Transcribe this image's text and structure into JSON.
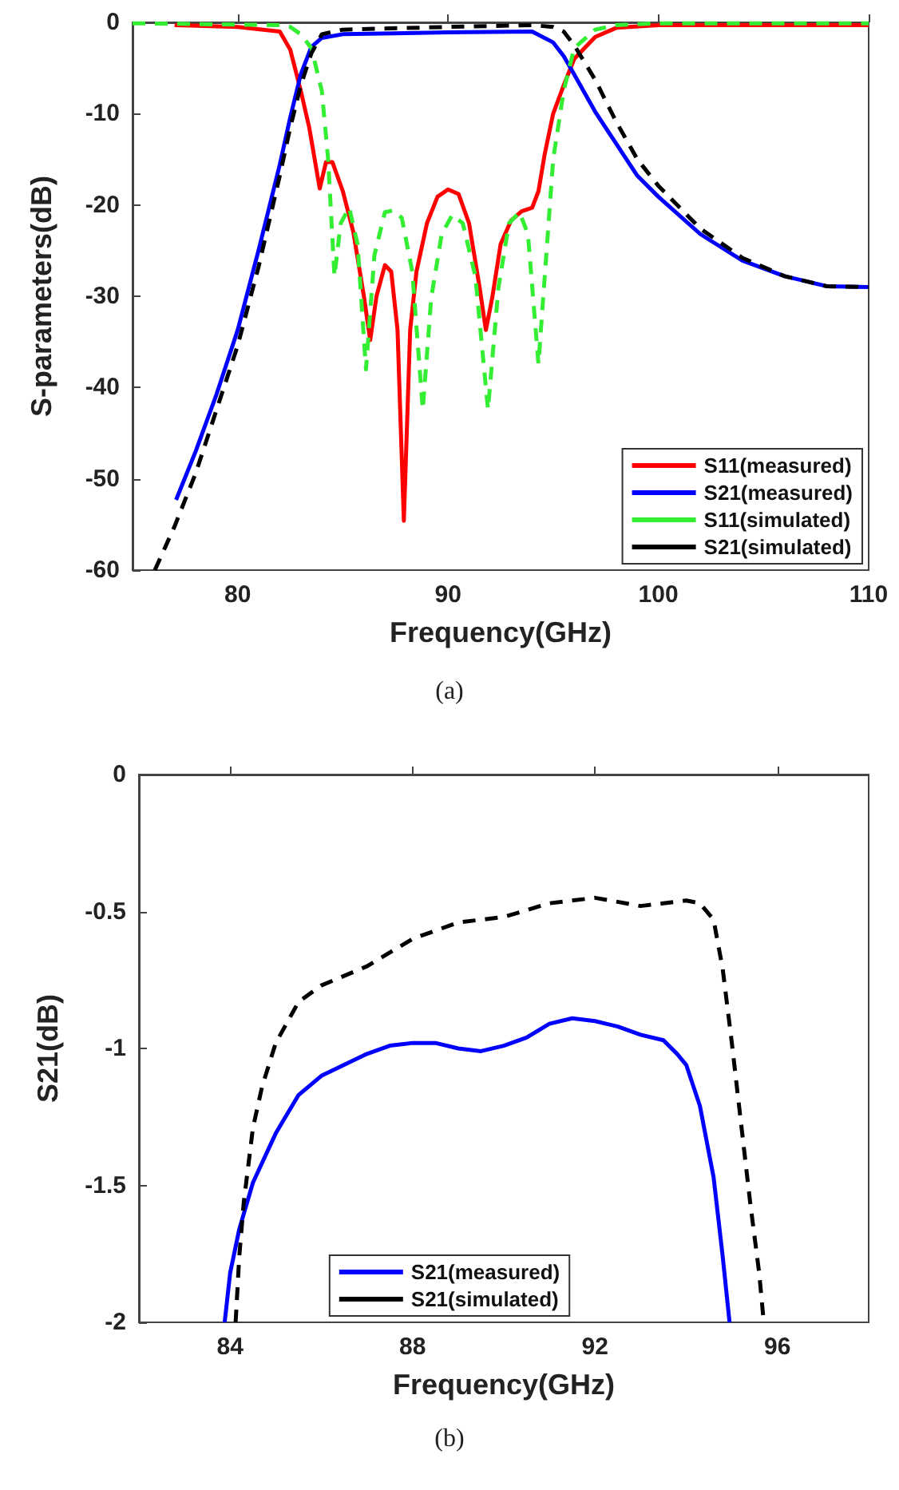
{
  "chart_data": [
    {
      "type": "line",
      "xlabel": "Frequency(GHz)",
      "ylabel": "S-parameters(dB)",
      "annotations": [
        "(a)"
      ],
      "xlim": [
        75,
        110
      ],
      "ylim": [
        -60,
        0
      ],
      "xticks": [
        80,
        90,
        100,
        110
      ],
      "yticks": [
        -60,
        -50,
        -40,
        -30,
        -20,
        -10,
        0
      ],
      "grid": false,
      "legend": "bottom right",
      "marker": "none",
      "series": [
        {
          "name": "S11(measured)",
          "color": "#ff0000",
          "line_style": "solid",
          "x": [
            77,
            80,
            82,
            82.5,
            83,
            83.4,
            83.9,
            84.2,
            84.5,
            85,
            85.5,
            86,
            86.3,
            86.6,
            87,
            87.3,
            87.6,
            87.9,
            88.2,
            88.5,
            89,
            89.5,
            90,
            90.5,
            91,
            91.5,
            91.8,
            92.1,
            92.5,
            93,
            93.5,
            94,
            94.3,
            94.6,
            95,
            95.5,
            96,
            97,
            98,
            100,
            105,
            110
          ],
          "values": [
            -0.3,
            -0.5,
            -1,
            -3,
            -7.5,
            -11.5,
            -18.2,
            -15.3,
            -15.3,
            -18.5,
            -23,
            -30,
            -34.8,
            -30,
            -26.6,
            -27.3,
            -33.7,
            -54.6,
            -33.7,
            -27.3,
            -22,
            -19.1,
            -18.3,
            -18.8,
            -22,
            -29,
            -33.7,
            -30.2,
            -24.3,
            -21.7,
            -20.7,
            -20.3,
            -18.5,
            -14.4,
            -10,
            -6.9,
            -4,
            -1.6,
            -0.6,
            -0.3,
            -0.3,
            -0.3
          ]
        },
        {
          "name": "S21(measured)",
          "color": "#0000ff",
          "line_style": "solid",
          "x": [
            77.07,
            78,
            79,
            80,
            81,
            82,
            82.5,
            83,
            83.5,
            84,
            85,
            90,
            94,
            95,
            95.5,
            96,
            97,
            98,
            99,
            100,
            102,
            104,
            106,
            108,
            110
          ],
          "values": [
            -52.3,
            -47,
            -40.7,
            -33.7,
            -24.9,
            -15.6,
            -10.4,
            -5.7,
            -2.7,
            -1.7,
            -1.3,
            -1.1,
            -1,
            -2.2,
            -3.7,
            -5.7,
            -9.8,
            -13.3,
            -16.8,
            -19.1,
            -23.2,
            -26.1,
            -27.8,
            -28.9,
            -29
          ]
        },
        {
          "name": "S11(simulated)",
          "color": "#33ee33",
          "line_style": "dashed",
          "x": [
            75,
            82,
            82.5,
            83,
            83.5,
            84,
            84.3,
            84.6,
            84.9,
            85.3,
            85.7,
            86.1,
            86.5,
            87,
            87.4,
            87.8,
            88.3,
            88.8,
            89.2,
            89.7,
            90.2,
            90.7,
            91.3,
            91.9,
            92.4,
            92.9,
            93.4,
            93.8,
            94.3,
            94.6,
            95,
            95.5,
            96,
            97,
            98,
            100,
            110
          ],
          "values": [
            -0.1,
            -0.3,
            -0.5,
            -1.3,
            -2.8,
            -7.5,
            -15,
            -27.8,
            -22,
            -20.3,
            -24.3,
            -38,
            -25.5,
            -20.8,
            -20.6,
            -21.4,
            -27.3,
            -42.4,
            -30.2,
            -23.2,
            -21.1,
            -22,
            -27.8,
            -42.4,
            -29,
            -22,
            -20.8,
            -23.2,
            -37.4,
            -27.8,
            -15,
            -7.5,
            -2.8,
            -0.8,
            -0.3,
            -0.1,
            -0.1
          ]
        },
        {
          "name": "S21(simulated)",
          "color": "#000000",
          "line_style": "dashed",
          "x": [
            76.06,
            77,
            78,
            79,
            80,
            81,
            82,
            82.5,
            83,
            83.5,
            84,
            85,
            90,
            94,
            95,
            95.5,
            96,
            97,
            98,
            99,
            100,
            102,
            104,
            106,
            108,
            110
          ],
          "values": [
            -60,
            -55.2,
            -49.4,
            -42.4,
            -35.4,
            -26.7,
            -16.8,
            -11.5,
            -6.9,
            -3.4,
            -1.3,
            -0.8,
            -0.5,
            -0.3,
            -0.5,
            -1,
            -2.5,
            -6.3,
            -10.9,
            -15,
            -17.9,
            -22.6,
            -25.8,
            -27.8,
            -28.9,
            -29
          ]
        }
      ]
    },
    {
      "type": "line",
      "xlabel": "Frequency(GHz)",
      "ylabel": "S21(dB)",
      "annotations": [
        "(b)"
      ],
      "xlim": [
        82,
        98
      ],
      "ylim": [
        -2,
        0
      ],
      "xticks": [
        84,
        88,
        92,
        96
      ],
      "yticks": [
        -2,
        -1.5,
        -1,
        -0.5,
        0
      ],
      "grid": false,
      "legend": "bottom",
      "marker": "none",
      "series": [
        {
          "name": "S21(measured)",
          "color": "#0000ff",
          "line_style": "solid",
          "x": [
            83.88,
            84,
            84.2,
            84.5,
            85,
            85.5,
            86,
            86.5,
            87,
            87.5,
            88,
            88.5,
            89,
            89.5,
            90,
            90.5,
            91,
            91.5,
            92,
            92.5,
            93,
            93.5,
            93.8,
            94,
            94.3,
            94.6,
            94.8,
            94.95
          ],
          "values": [
            -2,
            -1.82,
            -1.66,
            -1.49,
            -1.31,
            -1.17,
            -1.1,
            -1.06,
            -1.02,
            -0.99,
            -0.98,
            -0.98,
            -1,
            -1.01,
            -0.99,
            -0.96,
            -0.91,
            -0.89,
            -0.9,
            -0.92,
            -0.95,
            -0.97,
            -1.02,
            -1.06,
            -1.21,
            -1.47,
            -1.76,
            -2
          ]
        },
        {
          "name": "S21(simulated)",
          "color": "#000000",
          "line_style": "dashed",
          "x": [
            84.12,
            84.2,
            84.3,
            84.5,
            84.7,
            85,
            85.5,
            86,
            87,
            88,
            89,
            90,
            91,
            92,
            93,
            93.5,
            94,
            94.3,
            94.6,
            94.8,
            95,
            95.2,
            95.4,
            95.6,
            95.7
          ],
          "values": [
            -2,
            -1.76,
            -1.56,
            -1.29,
            -1.14,
            -0.98,
            -0.83,
            -0.77,
            -0.7,
            -0.6,
            -0.54,
            -0.52,
            -0.47,
            -0.45,
            -0.48,
            -0.47,
            -0.46,
            -0.47,
            -0.53,
            -0.71,
            -0.98,
            -1.27,
            -1.56,
            -1.82,
            -2
          ]
        }
      ]
    }
  ]
}
